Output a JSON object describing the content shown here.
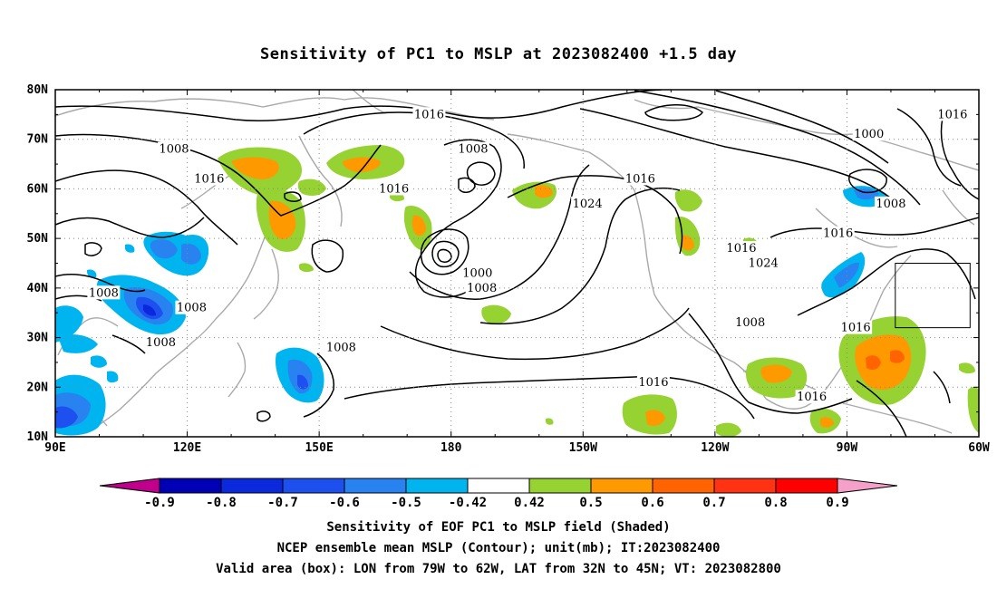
{
  "title": "Sensitivity of PC1 to MSLP at 2023082400 +1.5 day",
  "map": {
    "lon_range": [
      90,
      300
    ],
    "lat_range": [
      10,
      80
    ],
    "y_tick_labels": [
      "80N",
      "70N",
      "60N",
      "50N",
      "40N",
      "30N",
      "20N",
      "10N"
    ],
    "x_tick_labels": [
      "90E",
      "120E",
      "150E",
      "180",
      "150W",
      "120W",
      "90W",
      "60W"
    ],
    "valid_box": {
      "lon_min_w": 79,
      "lon_max_w": 62,
      "lat_min_n": 32,
      "lat_max_n": 45
    },
    "contour_labels": [
      {
        "text": "1016",
        "lon": 175,
        "lat": 75
      },
      {
        "text": "1008",
        "lon": 117,
        "lat": 68
      },
      {
        "text": "1008",
        "lon": 185,
        "lat": 68
      },
      {
        "text": "1000",
        "lon": 275,
        "lat": 71
      },
      {
        "text": "1016",
        "lon": 294,
        "lat": 75
      },
      {
        "text": "1016",
        "lon": 125,
        "lat": 62
      },
      {
        "text": "1016",
        "lon": 167,
        "lat": 60
      },
      {
        "text": "1016",
        "lon": 223,
        "lat": 62
      },
      {
        "text": "1024",
        "lon": 211,
        "lat": 57
      },
      {
        "text": "1008",
        "lon": 280,
        "lat": 57
      },
      {
        "text": "1016",
        "lon": 268,
        "lat": 51
      },
      {
        "text": "1016",
        "lon": 246,
        "lat": 48
      },
      {
        "text": "1024",
        "lon": 251,
        "lat": 45
      },
      {
        "text": "1000",
        "lon": 186,
        "lat": 43
      },
      {
        "text": "1008",
        "lon": 187,
        "lat": 40
      },
      {
        "text": "1008",
        "lon": 101,
        "lat": 39
      },
      {
        "text": "1008",
        "lon": 121,
        "lat": 36
      },
      {
        "text": "1008",
        "lon": 114,
        "lat": 29
      },
      {
        "text": "1008",
        "lon": 155,
        "lat": 28
      },
      {
        "text": "1008",
        "lon": 248,
        "lat": 33
      },
      {
        "text": "1016",
        "lon": 272,
        "lat": 32
      },
      {
        "text": "1016",
        "lon": 226,
        "lat": 21
      },
      {
        "text": "1016",
        "lon": 262,
        "lat": 18
      }
    ]
  },
  "colorbar": {
    "labels": [
      "-0.9",
      "-0.8",
      "-0.7",
      "-0.6",
      "-0.5",
      "-0.42",
      "0.42",
      "0.5",
      "0.6",
      "0.7",
      "0.8",
      "0.9"
    ],
    "colors": [
      "#c0008c",
      "#0000b4",
      "#0a28dc",
      "#1e50f0",
      "#2882f0",
      "#00b4f0",
      "#ffffff",
      "#96d232",
      "#ff9900",
      "#ff6400",
      "#ff3214",
      "#ff0000",
      "#f5a0c8"
    ]
  },
  "captions": {
    "line1": "Sensitivity of EOF PC1 to MSLP field (Shaded)",
    "line2": "NCEP ensemble mean MSLP (Contour); unit(mb); IT:2023082400",
    "line3": "Valid area (box): LON from 79W to 62W, LAT from 32N to 45N; VT: 2023082800"
  }
}
